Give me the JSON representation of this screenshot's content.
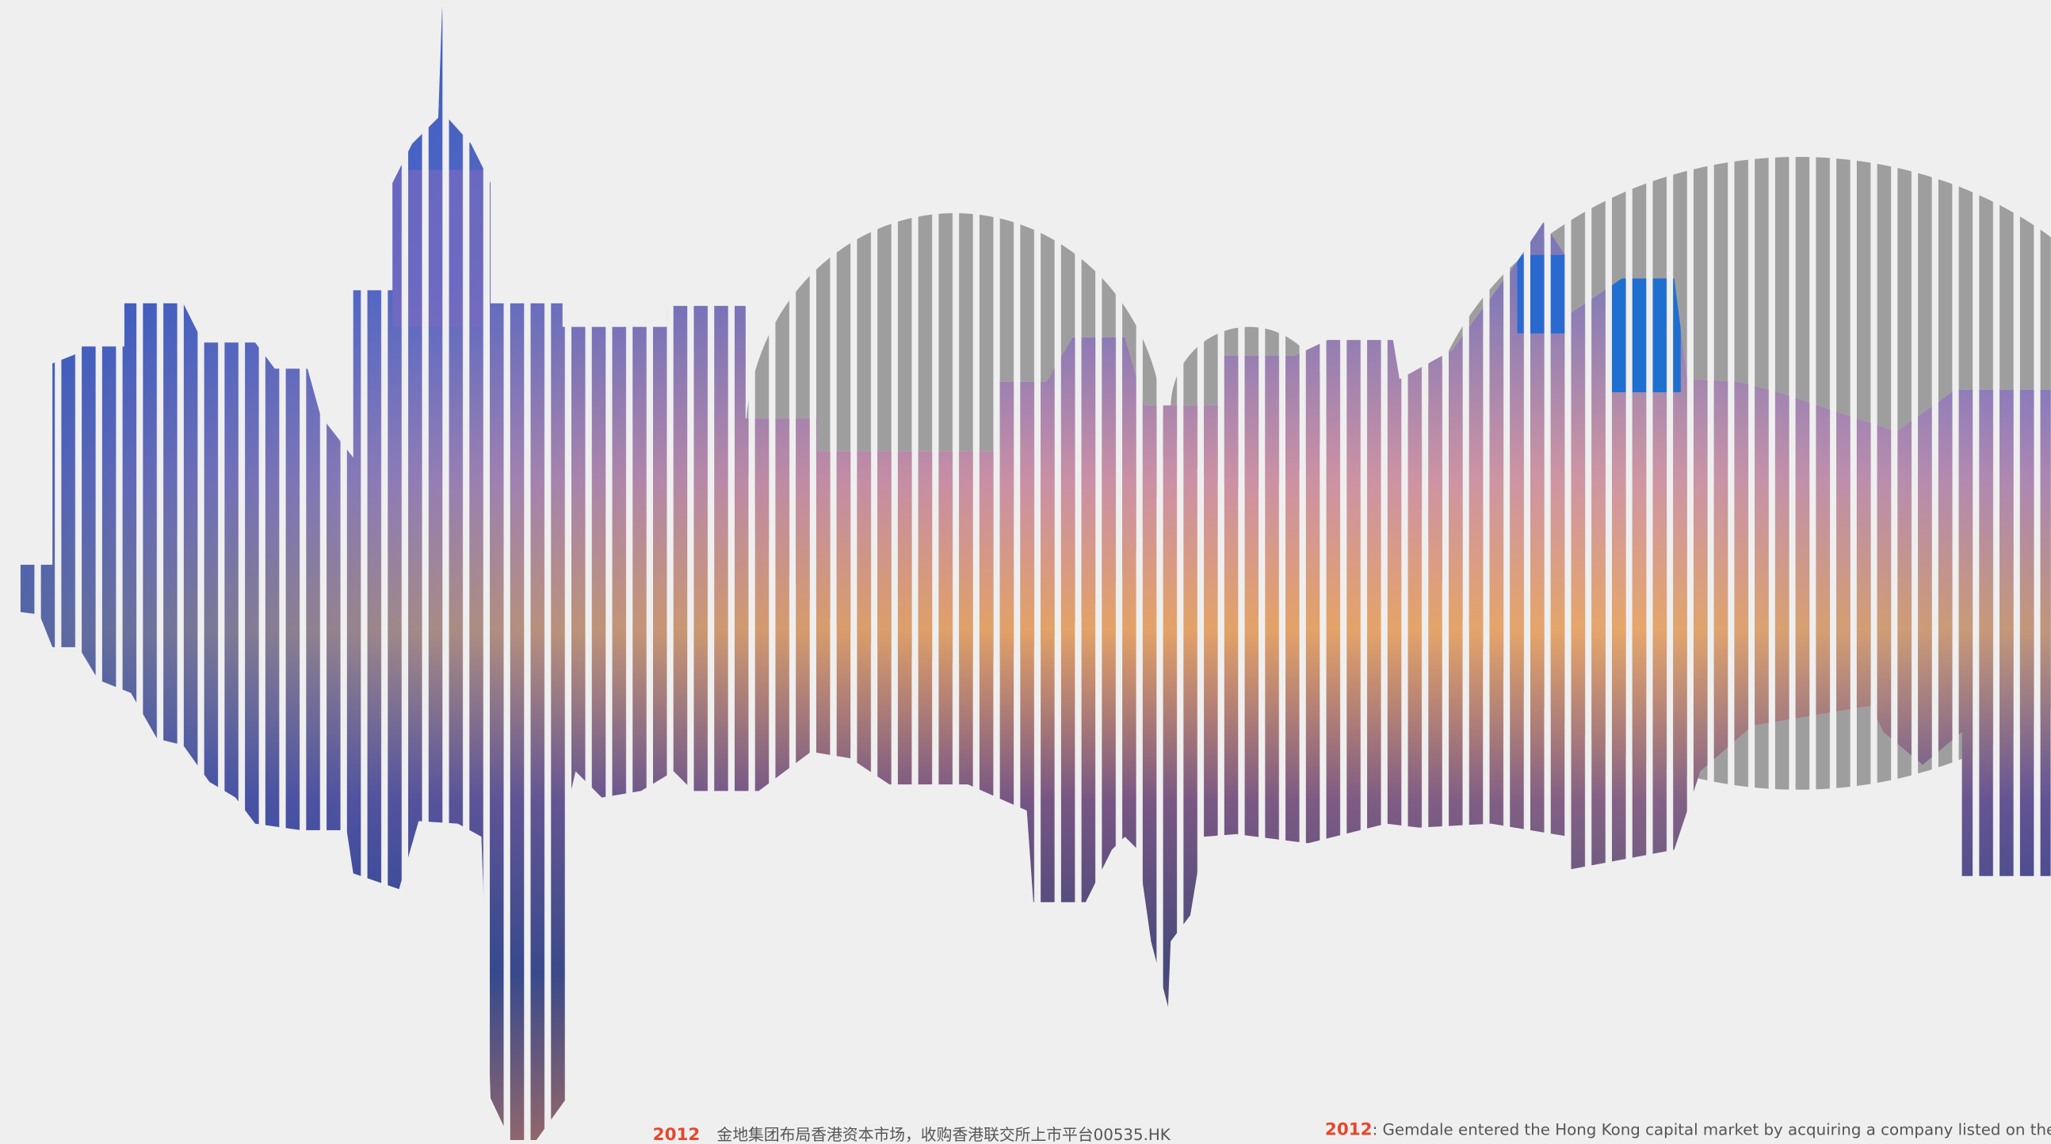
{
  "caption_zh": {
    "year": "2012",
    "text": "金地集团布局香港资本市场，收购香港联交所上市平台00535.HK"
  },
  "caption_en": {
    "year": "2012",
    "text": ": Gemdale entered the Hong Kong capital market by acquiring a company listed on the"
  }
}
